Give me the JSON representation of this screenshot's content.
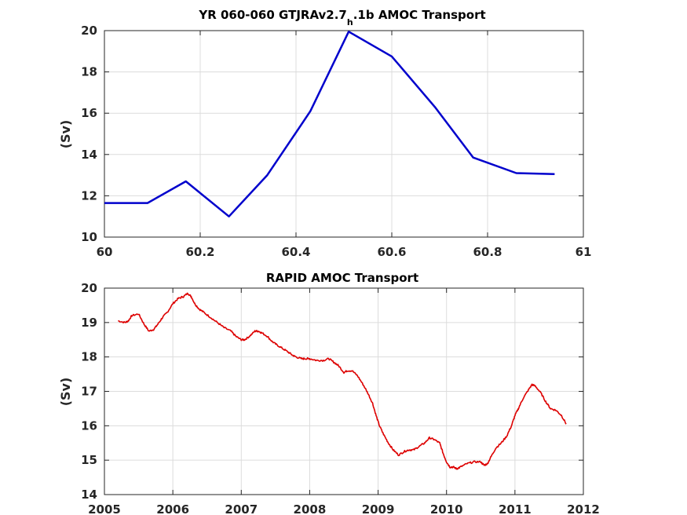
{
  "chart_data": [
    {
      "type": "line",
      "title": {
        "prefix": "YR 060-060 GTJRAv2.7",
        "subscript": "h",
        "suffix": ".1b AMOC Transport"
      },
      "xlabel": "",
      "ylabel": "(Sv)",
      "xlim": [
        60,
        61
      ],
      "ylim": [
        10,
        20
      ],
      "x_ticks": [
        60,
        60.2,
        60.4,
        60.6,
        60.8,
        61
      ],
      "x_tick_labels": [
        "60",
        "60.2",
        "60.4",
        "60.6",
        "60.8",
        "61"
      ],
      "y_ticks": [
        10,
        12,
        14,
        16,
        18,
        20
      ],
      "y_tick_labels": [
        "10",
        "12",
        "14",
        "16",
        "18",
        "20"
      ],
      "grid": true,
      "color": "#0000cc",
      "series": [
        {
          "x": [
            60.0,
            60.09,
            60.17,
            60.26,
            60.34,
            60.43,
            60.51,
            60.6,
            60.69,
            60.77,
            60.86,
            60.94
          ],
          "values": [
            11.65,
            11.65,
            12.7,
            11.0,
            13.0,
            16.1,
            19.95,
            18.75,
            16.3,
            13.85,
            13.1,
            13.05
          ]
        }
      ]
    },
    {
      "type": "line",
      "title": "RAPID AMOC Transport",
      "xlabel": "",
      "ylabel": "(Sv)",
      "xlim": [
        2005,
        2012
      ],
      "ylim": [
        14,
        20
      ],
      "x_ticks": [
        2005,
        2006,
        2007,
        2008,
        2009,
        2010,
        2011,
        2012
      ],
      "x_tick_labels": [
        "2005",
        "2006",
        "2007",
        "2008",
        "2009",
        "2010",
        "2011",
        "2012"
      ],
      "y_ticks": [
        14,
        15,
        16,
        17,
        18,
        19,
        20
      ],
      "y_tick_labels": [
        "14",
        "15",
        "16",
        "17",
        "18",
        "19",
        "20"
      ],
      "grid": true,
      "color": "#dd0000",
      "series": [
        {
          "x": [
            2005.2,
            2005.3,
            2005.35,
            2005.4,
            2005.5,
            2005.58,
            2005.65,
            2005.72,
            2005.78,
            2005.85,
            2005.92,
            2006.0,
            2006.08,
            2006.15,
            2006.22,
            2006.27,
            2006.32,
            2006.38,
            2006.45,
            2006.55,
            2006.65,
            2006.75,
            2006.85,
            2006.92,
            2007.0,
            2007.05,
            2007.12,
            2007.2,
            2007.25,
            2007.3,
            2007.38,
            2007.45,
            2007.52,
            2007.6,
            2007.68,
            2007.75,
            2007.8,
            2007.88,
            2007.95,
            2008.0,
            2008.1,
            2008.2,
            2008.28,
            2008.35,
            2008.42,
            2008.5,
            2008.55,
            2008.62,
            2008.7,
            2008.78,
            2008.85,
            2008.92,
            2008.97,
            2009.02,
            2009.08,
            2009.15,
            2009.22,
            2009.3,
            2009.38,
            2009.45,
            2009.52,
            2009.6,
            2009.68,
            2009.75,
            2009.82,
            2009.9,
            2009.95,
            2010.0,
            2010.05,
            2010.1,
            2010.15,
            2010.2,
            2010.3,
            2010.4,
            2010.5,
            2010.55,
            2010.6,
            2010.65,
            2010.72,
            2010.8,
            2010.88,
            2010.95,
            2011.0,
            2011.05,
            2011.12,
            2011.2,
            2011.25,
            2011.3,
            2011.38,
            2011.45,
            2011.52,
            2011.6,
            2011.68,
            2011.75
          ],
          "values": [
            19.05,
            19.0,
            19.05,
            19.2,
            19.25,
            18.95,
            18.75,
            18.8,
            18.95,
            19.15,
            19.3,
            19.55,
            19.7,
            19.75,
            19.85,
            19.75,
            19.55,
            19.4,
            19.3,
            19.15,
            19.0,
            18.85,
            18.75,
            18.6,
            18.5,
            18.5,
            18.6,
            18.75,
            18.75,
            18.7,
            18.6,
            18.45,
            18.35,
            18.25,
            18.15,
            18.05,
            18.0,
            17.95,
            17.95,
            17.95,
            17.9,
            17.9,
            17.95,
            17.85,
            17.75,
            17.55,
            17.6,
            17.6,
            17.45,
            17.2,
            16.95,
            16.65,
            16.3,
            16.0,
            15.75,
            15.5,
            15.3,
            15.15,
            15.25,
            15.3,
            15.3,
            15.4,
            15.5,
            15.65,
            15.6,
            15.5,
            15.2,
            14.95,
            14.8,
            14.8,
            14.75,
            14.8,
            14.9,
            14.95,
            14.95,
            14.85,
            14.9,
            15.1,
            15.35,
            15.5,
            15.7,
            16.0,
            16.3,
            16.5,
            16.8,
            17.05,
            17.2,
            17.15,
            16.95,
            16.7,
            16.5,
            16.45,
            16.3,
            16.05
          ]
        }
      ]
    }
  ]
}
